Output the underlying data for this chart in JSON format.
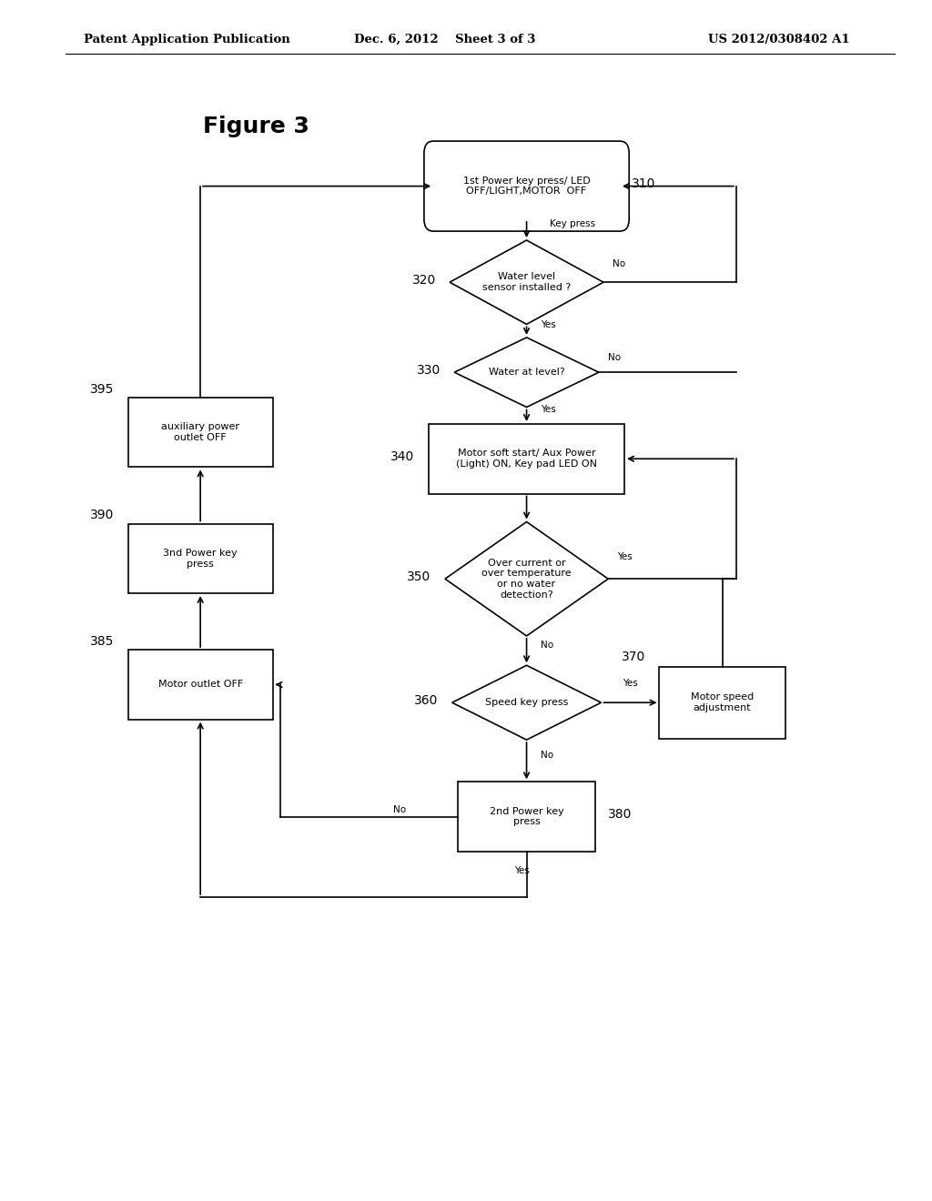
{
  "bg_color": "#ffffff",
  "header_left": "Patent Application Publication",
  "header_mid": "Dec. 6, 2012    Sheet 3 of 3",
  "header_right": "US 2012/0308402 A1",
  "figure_label": "Figure 3",
  "node_310_text": "1st Power key press/ LED\nOFF/LIGHT,MOTOR  OFF",
  "node_320_text": "Water level\nsensor installed ?",
  "node_330_text": "Water at level?",
  "node_340_text": "Motor soft start/ Aux Power\n(Light) ON, Key pad LED ON",
  "node_350_text": "Over current or\nover temperature\nor no water\ndetection?",
  "node_360_text": "Speed key press",
  "node_370_text": "Motor speed\nadjustment",
  "node_380_text": "2nd Power key\npress",
  "node_385_text": "Motor outlet OFF",
  "node_390_text": "3nd Power key\npress",
  "node_395_text": "auxiliary power\noutlet OFF"
}
